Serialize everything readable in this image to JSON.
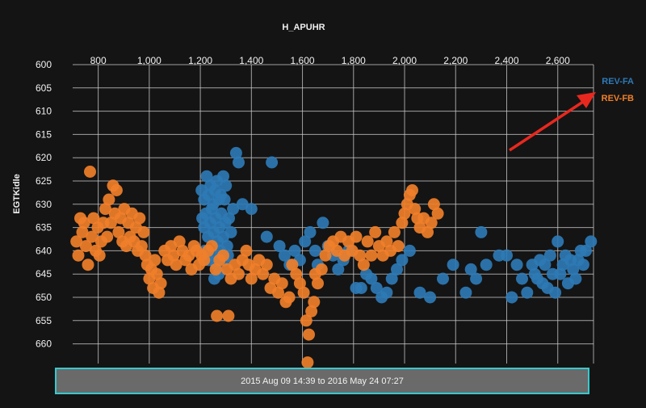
{
  "chart_data": {
    "type": "scatter",
    "title": "",
    "xlabel": "H_APUHR",
    "ylabel": "EGTKidle",
    "xlim": [
      700,
      2740
    ],
    "ylim": [
      600,
      665
    ],
    "y_inverted": true,
    "x_ticks": [
      "800",
      "1,000",
      "1,200",
      "1,400",
      "1,600",
      "1,800",
      "2,000",
      "2,200",
      "2,400",
      "2,600"
    ],
    "y_ticks": [
      "600",
      "605",
      "610",
      "615",
      "620",
      "625",
      "630",
      "635",
      "640",
      "645",
      "650",
      "655",
      "660"
    ],
    "legend_position": "top-right",
    "series": [
      {
        "name": "REV-FA",
        "color": "#2e79b5",
        "points": [
          [
            1205,
            627
          ],
          [
            1215,
            629
          ],
          [
            1225,
            624
          ],
          [
            1232,
            628
          ],
          [
            1240,
            626
          ],
          [
            1250,
            630
          ],
          [
            1258,
            627
          ],
          [
            1265,
            625
          ],
          [
            1272,
            629
          ],
          [
            1280,
            628
          ],
          [
            1290,
            624
          ],
          [
            1295,
            629
          ],
          [
            1300,
            626
          ],
          [
            1208,
            633
          ],
          [
            1215,
            635
          ],
          [
            1222,
            632
          ],
          [
            1230,
            637
          ],
          [
            1238,
            634
          ],
          [
            1245,
            631
          ],
          [
            1252,
            636
          ],
          [
            1260,
            633
          ],
          [
            1268,
            638
          ],
          [
            1275,
            635
          ],
          [
            1282,
            632
          ],
          [
            1290,
            637
          ],
          [
            1298,
            634
          ],
          [
            1305,
            639
          ],
          [
            1312,
            633
          ],
          [
            1320,
            636
          ],
          [
            1328,
            631
          ],
          [
            1218,
            640
          ],
          [
            1232,
            642
          ],
          [
            1248,
            641
          ],
          [
            1262,
            643
          ],
          [
            1278,
            640
          ],
          [
            1292,
            642
          ],
          [
            1308,
            641
          ],
          [
            1255,
            646
          ],
          [
            1272,
            645
          ],
          [
            1340,
            619
          ],
          [
            1350,
            621
          ],
          [
            1365,
            630
          ],
          [
            1400,
            631
          ],
          [
            1480,
            621
          ],
          [
            1460,
            637
          ],
          [
            1510,
            639
          ],
          [
            1530,
            641
          ],
          [
            1550,
            643
          ],
          [
            1570,
            640
          ],
          [
            1590,
            642
          ],
          [
            1610,
            638
          ],
          [
            1630,
            636
          ],
          [
            1650,
            640
          ],
          [
            1660,
            643
          ],
          [
            1680,
            634
          ],
          [
            1700,
            639
          ],
          [
            1720,
            641
          ],
          [
            1740,
            644
          ],
          [
            1760,
            642
          ],
          [
            1780,
            640
          ],
          [
            1810,
            648
          ],
          [
            1830,
            648
          ],
          [
            1850,
            645
          ],
          [
            1870,
            646
          ],
          [
            1890,
            648
          ],
          [
            1910,
            650
          ],
          [
            1930,
            649
          ],
          [
            1950,
            646
          ],
          [
            1970,
            644
          ],
          [
            1990,
            642
          ],
          [
            2020,
            640
          ],
          [
            2060,
            649
          ],
          [
            2100,
            650
          ],
          [
            2150,
            646
          ],
          [
            2190,
            643
          ],
          [
            2240,
            649
          ],
          [
            2260,
            644
          ],
          [
            2280,
            646
          ],
          [
            2300,
            636
          ],
          [
            2320,
            643
          ],
          [
            2370,
            641
          ],
          [
            2400,
            641
          ],
          [
            2420,
            650
          ],
          [
            2440,
            643
          ],
          [
            2460,
            646
          ],
          [
            2480,
            649
          ],
          [
            2500,
            643
          ],
          [
            2510,
            645
          ],
          [
            2520,
            646
          ],
          [
            2530,
            642
          ],
          [
            2540,
            647
          ],
          [
            2550,
            643
          ],
          [
            2560,
            648
          ],
          [
            2570,
            641
          ],
          [
            2580,
            645
          ],
          [
            2590,
            649
          ],
          [
            2600,
            638
          ],
          [
            2610,
            645
          ],
          [
            2620,
            643
          ],
          [
            2630,
            641
          ],
          [
            2640,
            647
          ],
          [
            2650,
            642
          ],
          [
            2660,
            644
          ],
          [
            2670,
            646
          ],
          [
            2680,
            642
          ],
          [
            2690,
            640
          ],
          [
            2700,
            643
          ],
          [
            2710,
            640
          ],
          [
            2730,
            638
          ]
        ]
      },
      {
        "name": "REV-FB",
        "color": "#f07f2a",
        "points": [
          [
            715,
            638
          ],
          [
            722,
            641
          ],
          [
            730,
            633
          ],
          [
            738,
            636
          ],
          [
            745,
            634
          ],
          [
            752,
            639
          ],
          [
            760,
            643
          ],
          [
            768,
            623
          ],
          [
            775,
            637
          ],
          [
            782,
            633
          ],
          [
            790,
            640
          ],
          [
            798,
            635
          ],
          [
            805,
            641
          ],
          [
            812,
            638
          ],
          [
            820,
            634
          ],
          [
            828,
            631
          ],
          [
            835,
            637
          ],
          [
            842,
            629
          ],
          [
            850,
            634
          ],
          [
            858,
            626
          ],
          [
            865,
            632
          ],
          [
            872,
            627
          ],
          [
            880,
            636
          ],
          [
            888,
            633
          ],
          [
            895,
            638
          ],
          [
            902,
            631
          ],
          [
            910,
            639
          ],
          [
            918,
            634
          ],
          [
            925,
            637
          ],
          [
            932,
            632
          ],
          [
            940,
            638
          ],
          [
            948,
            635
          ],
          [
            955,
            640
          ],
          [
            962,
            633
          ],
          [
            970,
            639
          ],
          [
            978,
            636
          ],
          [
            985,
            641
          ],
          [
            992,
            643
          ],
          [
            1000,
            646
          ],
          [
            1008,
            644
          ],
          [
            1015,
            648
          ],
          [
            1022,
            642
          ],
          [
            1030,
            645
          ],
          [
            1038,
            649
          ],
          [
            1045,
            647
          ],
          [
            1060,
            640
          ],
          [
            1072,
            642
          ],
          [
            1085,
            639
          ],
          [
            1095,
            641
          ],
          [
            1105,
            643
          ],
          [
            1118,
            638
          ],
          [
            1130,
            640
          ],
          [
            1142,
            642
          ],
          [
            1155,
            641
          ],
          [
            1165,
            644
          ],
          [
            1175,
            639
          ],
          [
            1185,
            640
          ],
          [
            1195,
            643
          ],
          [
            1205,
            641
          ],
          [
            1215,
            642
          ],
          [
            1230,
            640
          ],
          [
            1245,
            639
          ],
          [
            1260,
            644
          ],
          [
            1275,
            642
          ],
          [
            1290,
            641
          ],
          [
            1305,
            644
          ],
          [
            1320,
            646
          ],
          [
            1335,
            643
          ],
          [
            1350,
            645
          ],
          [
            1365,
            642
          ],
          [
            1380,
            640
          ],
          [
            1390,
            643
          ],
          [
            1400,
            646
          ],
          [
            1415,
            644
          ],
          [
            1430,
            642
          ],
          [
            1445,
            645
          ],
          [
            1460,
            643
          ],
          [
            1475,
            648
          ],
          [
            1490,
            646
          ],
          [
            1505,
            649
          ],
          [
            1520,
            647
          ],
          [
            1535,
            651
          ],
          [
            1548,
            650
          ],
          [
            1560,
            643
          ],
          [
            1575,
            645
          ],
          [
            1590,
            647
          ],
          [
            1605,
            649
          ],
          [
            1615,
            655
          ],
          [
            1625,
            658
          ],
          [
            1635,
            653
          ],
          [
            1645,
            651
          ],
          [
            1660,
            647
          ],
          [
            1675,
            644
          ],
          [
            1690,
            641
          ],
          [
            1705,
            639
          ],
          [
            1720,
            638
          ],
          [
            1735,
            640
          ],
          [
            1750,
            637
          ],
          [
            1765,
            641
          ],
          [
            1780,
            638
          ],
          [
            1795,
            640
          ],
          [
            1810,
            637
          ],
          [
            1825,
            641
          ],
          [
            1840,
            643
          ],
          [
            1855,
            638
          ],
          [
            1870,
            641
          ],
          [
            1885,
            636
          ],
          [
            1900,
            639
          ],
          [
            1915,
            641
          ],
          [
            1930,
            638
          ],
          [
            1945,
            640
          ],
          [
            1960,
            636
          ],
          [
            1975,
            639
          ],
          [
            1990,
            634
          ],
          [
            2000,
            632
          ],
          [
            2010,
            630
          ],
          [
            2020,
            628
          ],
          [
            2030,
            627
          ],
          [
            2040,
            631
          ],
          [
            2050,
            633
          ],
          [
            2060,
            635
          ],
          [
            2075,
            633
          ],
          [
            2090,
            636
          ],
          [
            2105,
            634
          ],
          [
            2115,
            630
          ],
          [
            2130,
            632
          ],
          [
            1265,
            654
          ],
          [
            1310,
            654
          ],
          [
            1620,
            664
          ],
          [
            1650,
            645
          ]
        ]
      }
    ]
  }
}
